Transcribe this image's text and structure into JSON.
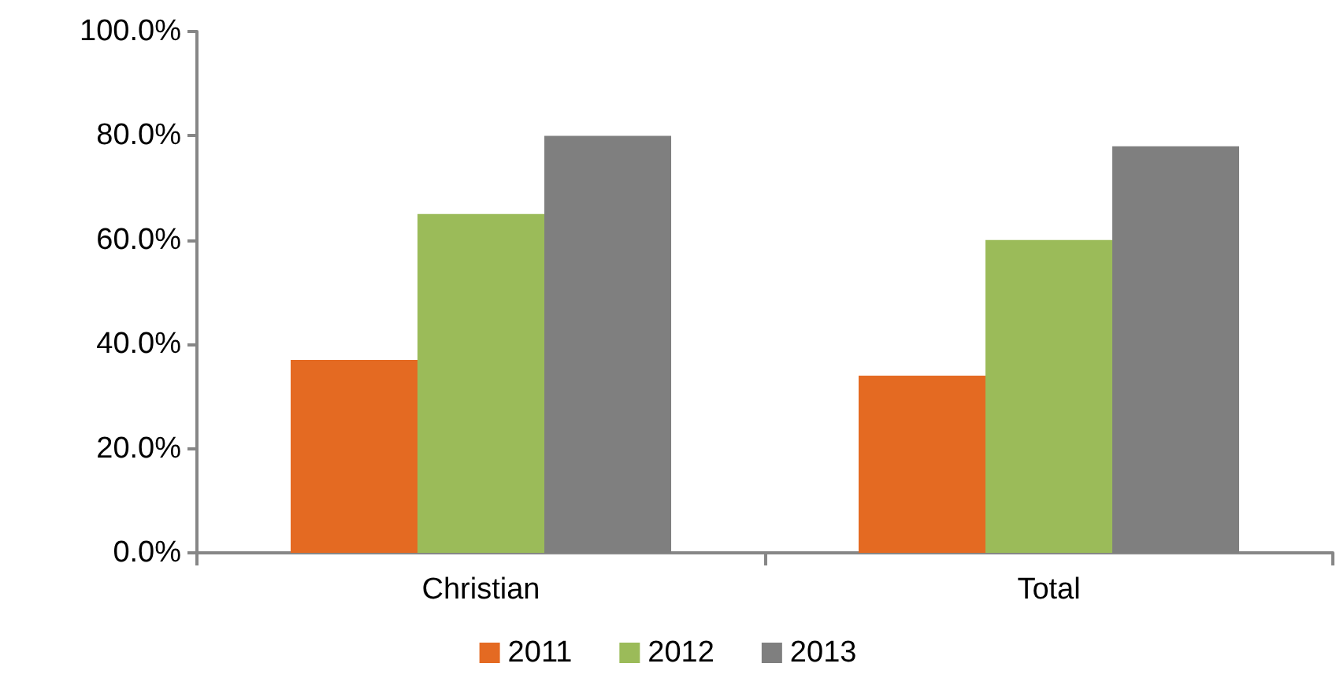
{
  "chart_data": {
    "type": "bar",
    "categories": [
      "Christian",
      "Total"
    ],
    "series": [
      {
        "name": "2011",
        "color": "#e46a22",
        "values": [
          37,
          34
        ]
      },
      {
        "name": "2012",
        "color": "#9bbb59",
        "values": [
          65,
          60
        ]
      },
      {
        "name": "2013",
        "color": "#7f7f7f",
        "values": [
          80,
          78
        ]
      }
    ],
    "ylim": [
      0,
      100
    ],
    "yticks": [
      {
        "value": 0,
        "label": "0.0%"
      },
      {
        "value": 20,
        "label": "20.0%"
      },
      {
        "value": 40,
        "label": "40.0%"
      },
      {
        "value": 60,
        "label": "60.0%"
      },
      {
        "value": 80,
        "label": "80.0%"
      },
      {
        "value": 100,
        "label": "100.0%"
      }
    ],
    "grid": false,
    "legend": "bottom"
  }
}
